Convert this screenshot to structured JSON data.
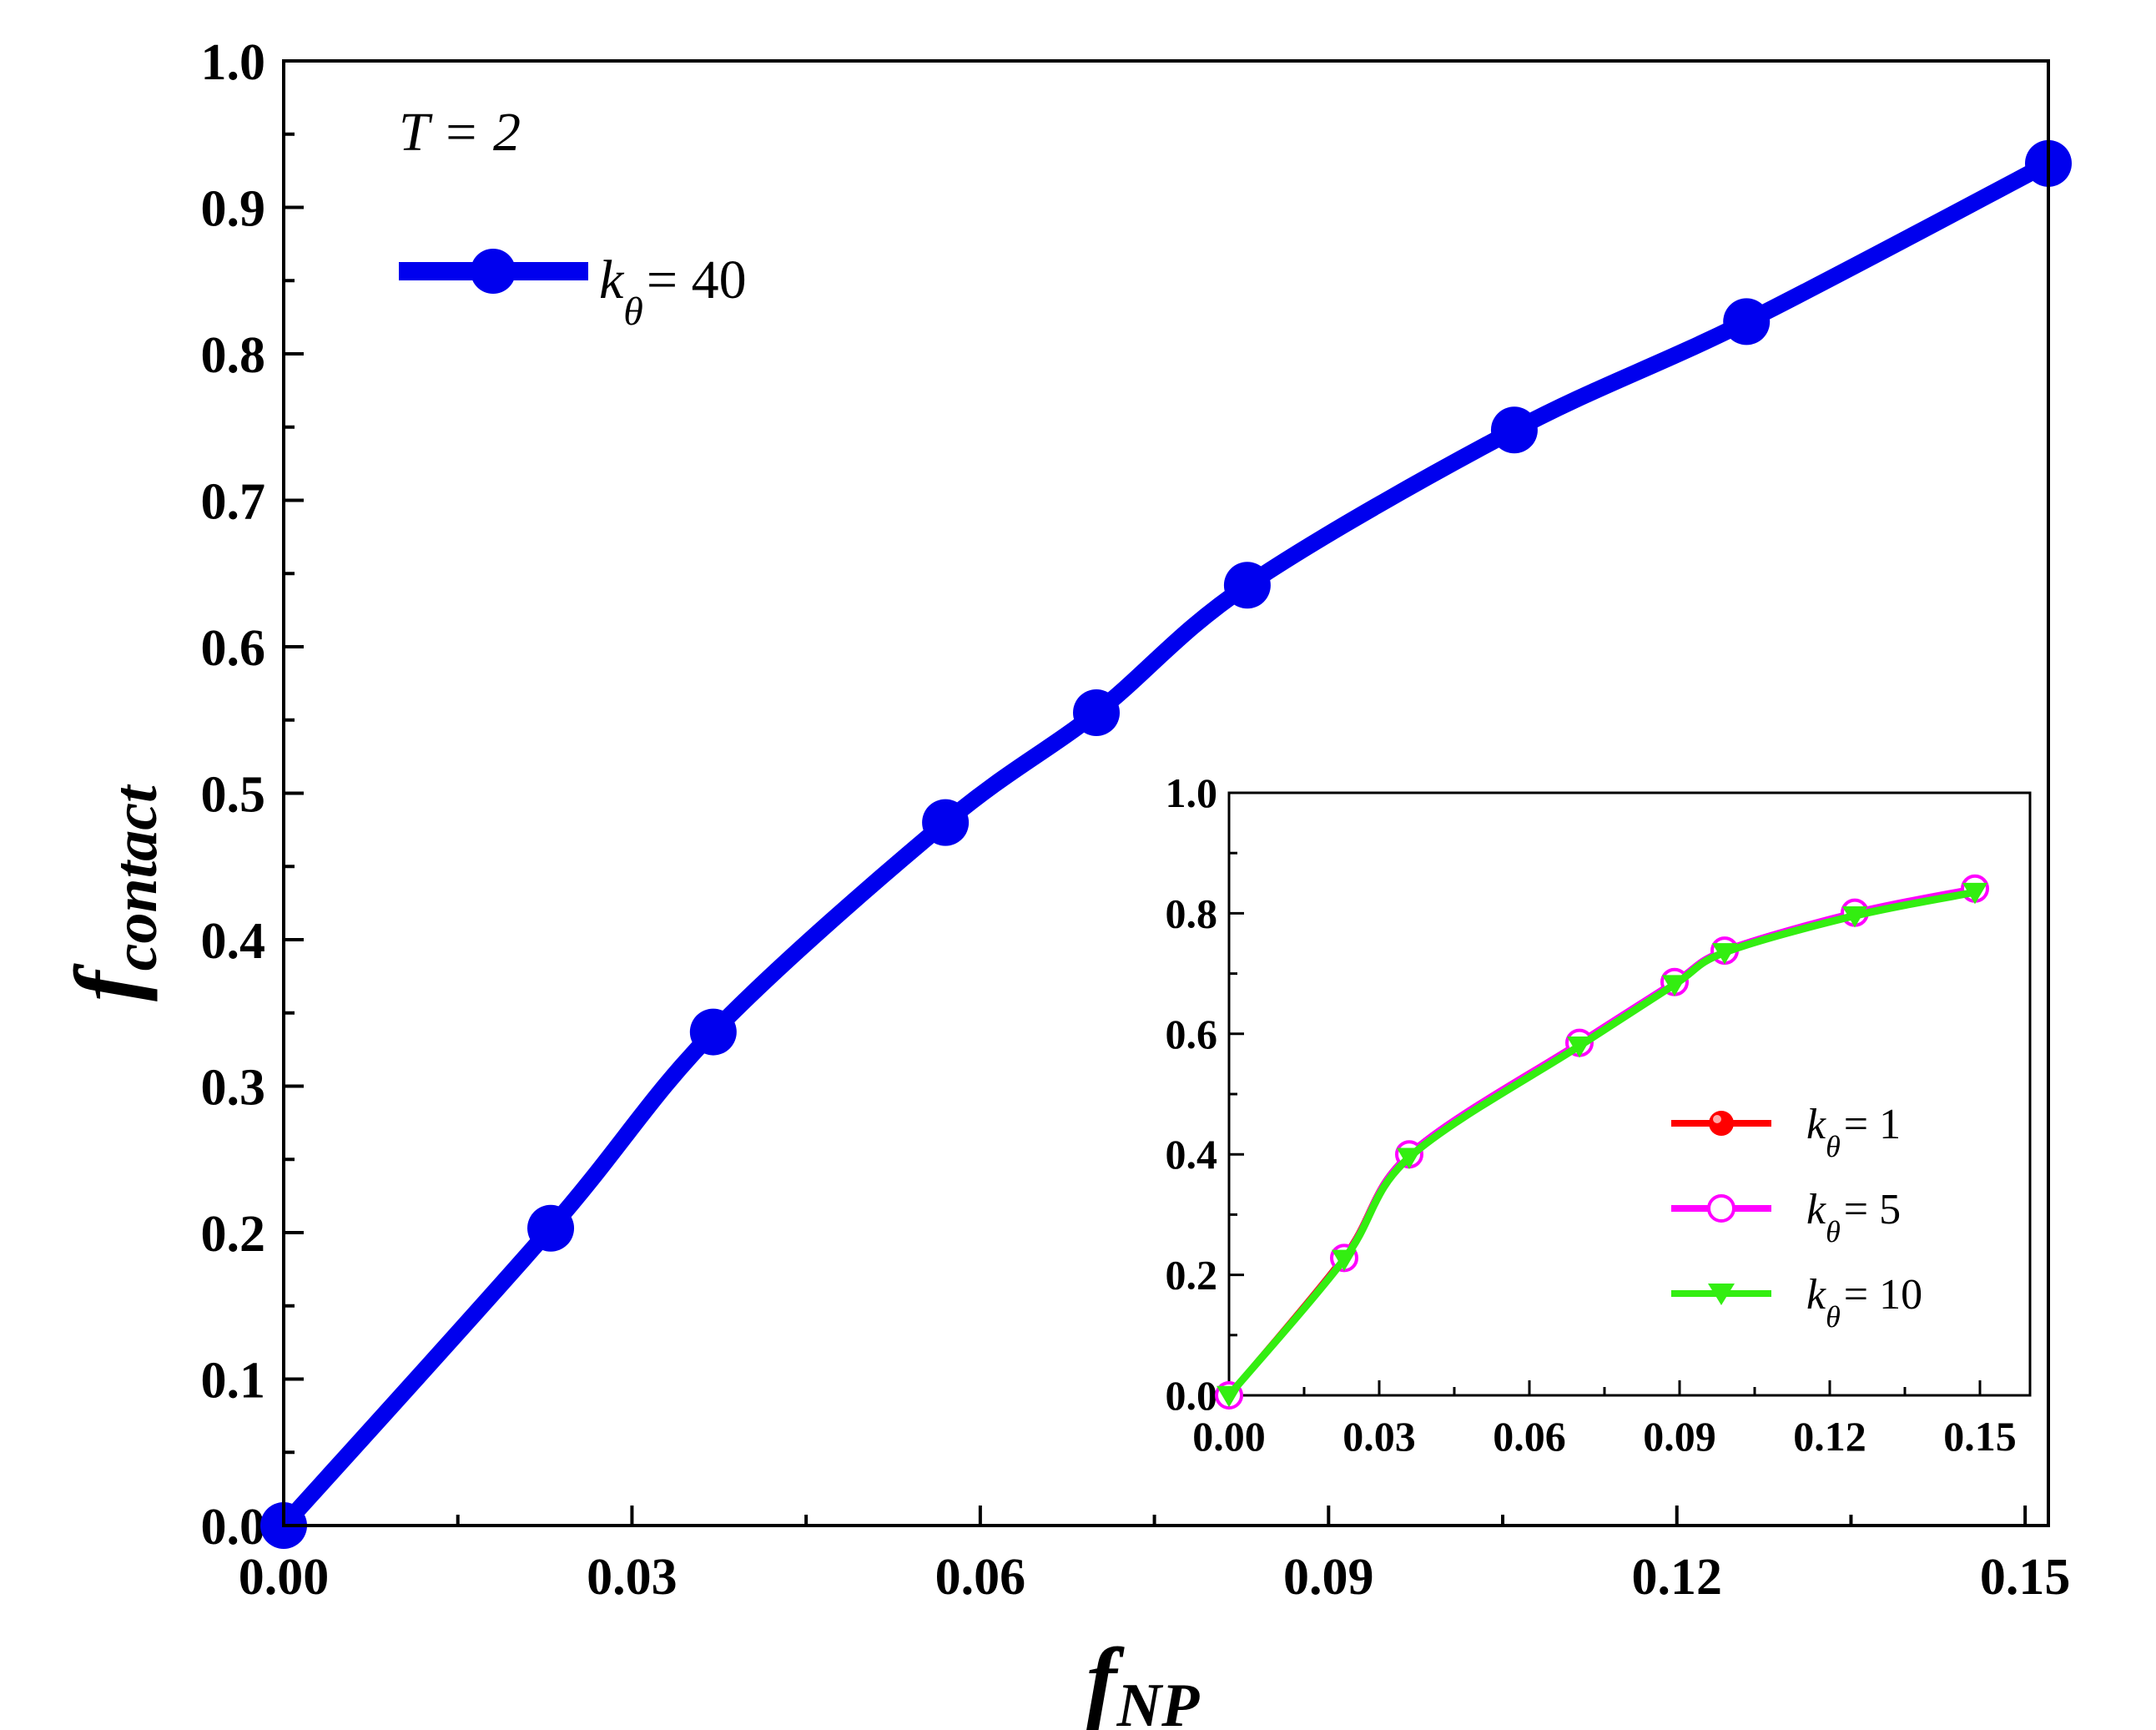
{
  "chart_data": [
    {
      "type": "line",
      "panel": "main",
      "title": "",
      "xlabel": "f",
      "xlabel_sub": "NP",
      "ylabel": "f",
      "ylabel_sub": "contact",
      "annotation": "T = 2",
      "xlim": [
        0.0,
        0.152
      ],
      "ylim": [
        0.0,
        1.0
      ],
      "xticks": [
        "0.00",
        "0.03",
        "0.06",
        "0.09",
        "0.12",
        "0.15"
      ],
      "yticks": [
        "0.0",
        "0.1",
        "0.2",
        "0.3",
        "0.4",
        "0.5",
        "0.6",
        "0.7",
        "0.8",
        "0.9",
        "1.0"
      ],
      "legend_position": "top-left",
      "series": [
        {
          "name": "k_θ = 40",
          "legend_symbol": "k",
          "legend_sub": "θ",
          "legend_value": "= 40",
          "color": "#0000ee",
          "marker": "circle",
          "x": [
            0.0,
            0.023,
            0.037,
            0.057,
            0.07,
            0.083,
            0.106,
            0.126,
            0.152
          ],
          "y": [
            0.0,
            0.203,
            0.337,
            0.48,
            0.555,
            0.642,
            0.748,
            0.822,
            0.93
          ]
        }
      ]
    },
    {
      "type": "line",
      "panel": "inset",
      "xlim": [
        0.0,
        0.16
      ],
      "ylim": [
        0.0,
        1.0
      ],
      "xticks": [
        "0.00",
        "0.03",
        "0.06",
        "0.09",
        "0.12",
        "0.15"
      ],
      "yticks": [
        "0.0",
        "0.2",
        "0.4",
        "0.6",
        "0.8",
        "1.0"
      ],
      "legend_position": "center-right",
      "series": [
        {
          "name": "k_θ = 1",
          "legend_symbol": "k",
          "legend_sub": "θ",
          "legend_value": "= 1",
          "color": "#ff0000",
          "marker": "filled-circle",
          "x": [
            0.0,
            0.023,
            0.036,
            0.07,
            0.089,
            0.099,
            0.125,
            0.149
          ],
          "y": [
            0.0,
            0.23,
            0.4,
            0.585,
            0.685,
            0.738,
            0.8,
            0.84
          ]
        },
        {
          "name": "k_θ = 5",
          "legend_symbol": "k",
          "legend_sub": "θ",
          "legend_value": "= 5",
          "color": "#ff00ff",
          "marker": "open-circle",
          "x": [
            0.0,
            0.023,
            0.036,
            0.07,
            0.089,
            0.099,
            0.125,
            0.149
          ],
          "y": [
            0.0,
            0.228,
            0.4,
            0.585,
            0.686,
            0.738,
            0.801,
            0.841
          ]
        },
        {
          "name": "k_θ = 10",
          "legend_symbol": "k",
          "legend_sub": "θ",
          "legend_value": "= 10",
          "color": "#33ee11",
          "marker": "down-triangle",
          "x": [
            0.0,
            0.023,
            0.036,
            0.07,
            0.089,
            0.099,
            0.125,
            0.149
          ],
          "y": [
            0.0,
            0.226,
            0.395,
            0.58,
            0.682,
            0.735,
            0.796,
            0.835
          ]
        }
      ]
    }
  ]
}
